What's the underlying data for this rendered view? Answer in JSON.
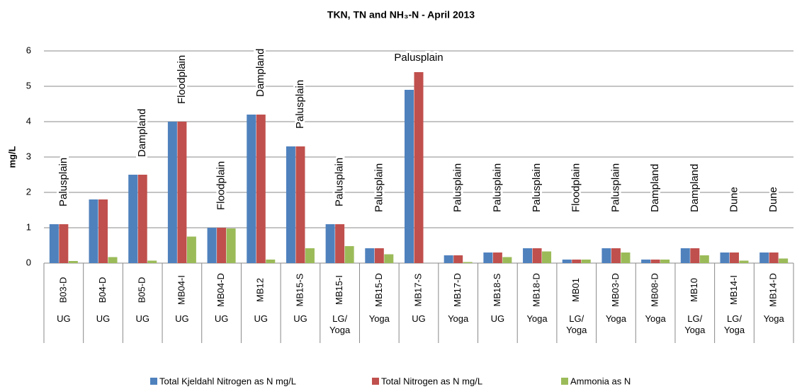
{
  "chart_data": {
    "type": "bar",
    "title": "TKN, TN and NH₃-N  - April 2013",
    "y_label": "mg/L",
    "categories": [
      "B03-D",
      "B04-D",
      "B05-D",
      "MB04-I",
      "MB04-D",
      "MB12",
      "MB15-S",
      "MB15-I",
      "MB15-D",
      "MB17-S",
      "MB17-D",
      "MB18-S",
      "MB18-D",
      "MB01",
      "MB03-D",
      "MB08-D",
      "MB10",
      "MB14-I",
      "MB14-D"
    ],
    "groups": [
      "UG",
      "UG",
      "UG",
      "UG",
      "UG",
      "UG",
      "UG",
      "LG/ Yoga",
      "Yoga",
      "UG",
      "Yoga",
      "UG",
      "Yoga",
      "LG/ Yoga",
      "Yoga",
      "Yoga",
      "LG/ Yoga",
      "LG/ Yoga",
      "Yoga"
    ],
    "annotations": [
      "Palusplain",
      null,
      "Dampland",
      "Floodplain",
      "Floodplain",
      "Dampland",
      "Palusplain",
      "Palusplain",
      "Palusplain",
      "Palusplain",
      "Palusplain",
      "Palusplain",
      "Palusplain",
      "Floodplain",
      "Palusplain",
      "Dampland",
      "Dampland",
      "Dune",
      "Dune"
    ],
    "series": [
      {
        "name": "Total Kjeldahl Nitrogen as N mg/L",
        "color": "#4f81bd",
        "values": [
          1.1,
          1.8,
          2.5,
          4.0,
          1.0,
          4.2,
          3.3,
          1.1,
          0.42,
          4.9,
          0.22,
          0.3,
          0.42,
          0.1,
          0.42,
          0.1,
          0.42,
          0.3,
          0.3
        ]
      },
      {
        "name": "Total Nitrogen as N mg/L",
        "color": "#c0504d",
        "values": [
          1.1,
          1.8,
          2.5,
          4.0,
          1.0,
          4.2,
          3.3,
          1.1,
          0.42,
          5.4,
          0.22,
          0.3,
          0.42,
          0.1,
          0.42,
          0.1,
          0.42,
          0.3,
          0.3
        ]
      },
      {
        "name": "Ammonia as N",
        "color": "#9bbb59",
        "values": [
          0.06,
          0.17,
          0.07,
          0.75,
          0.98,
          0.1,
          0.42,
          0.48,
          0.25,
          0,
          0.03,
          0.17,
          0.33,
          0.1,
          0.3,
          0.1,
          0.22,
          0.07,
          0.13
        ]
      }
    ],
    "ylim": [
      0,
      6
    ],
    "yticks": [
      0,
      1,
      2,
      3,
      4,
      5,
      6
    ],
    "grid": true,
    "legend": "bottom"
  }
}
